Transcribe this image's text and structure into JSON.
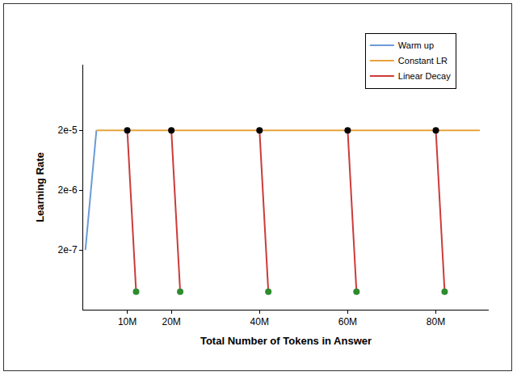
{
  "chart_data": {
    "type": "line",
    "xlabel": "Total Number of Tokens in Answer",
    "ylabel": "Learning Rate",
    "log": "y",
    "grid": false,
    "legend": "upper right",
    "xlim": [
      0,
      92000000
    ],
    "xticks": [
      {
        "value": 10000000,
        "label": "10M"
      },
      {
        "value": 20000000,
        "label": "20M"
      },
      {
        "value": 40000000,
        "label": "40M"
      },
      {
        "value": 60000000,
        "label": "60M"
      },
      {
        "value": 80000000,
        "label": "80M"
      }
    ],
    "ylim": [
      2e-08,
      0.00025
    ],
    "yticks": [
      {
        "value": 2e-07,
        "label": "2e-7"
      },
      {
        "value": 2e-06,
        "label": "2e-6"
      },
      {
        "value": 2e-05,
        "label": "2e-5"
      }
    ],
    "series": [
      {
        "name": "Warm up",
        "color": "#6a9bd8",
        "line_style": "solid",
        "x": [
          500000,
          3000000
        ],
        "values": [
          2e-07,
          2e-05
        ]
      },
      {
        "name": "Constant LR",
        "color": "#e8a33c",
        "line_style": "solid",
        "x": [
          3000000,
          90000000
        ],
        "values": [
          2e-05,
          2e-05
        ]
      },
      {
        "name": "Linear Decay",
        "color": "#cc3b3b",
        "line_style": "solid",
        "marker": "circle",
        "x": [
          10000000,
          12000000,
          null,
          20000000,
          22000000,
          null,
          40000000,
          42000000,
          null,
          60000000,
          62000000,
          null,
          80000000,
          82000000
        ],
        "values": [
          2e-05,
          4e-08,
          null,
          2e-05,
          4e-08,
          null,
          2e-05,
          4e-08,
          null,
          2e-05,
          4e-08,
          null,
          2e-05,
          4e-08
        ],
        "colors": [
          "#000000",
          "#2e8b2e",
          null,
          "#000000",
          "#2e8b2e",
          null,
          "#000000",
          "#2e8b2e",
          null,
          "#000000",
          "#2e8b2e",
          null,
          "#000000",
          "#2e8b2e"
        ]
      }
    ]
  }
}
